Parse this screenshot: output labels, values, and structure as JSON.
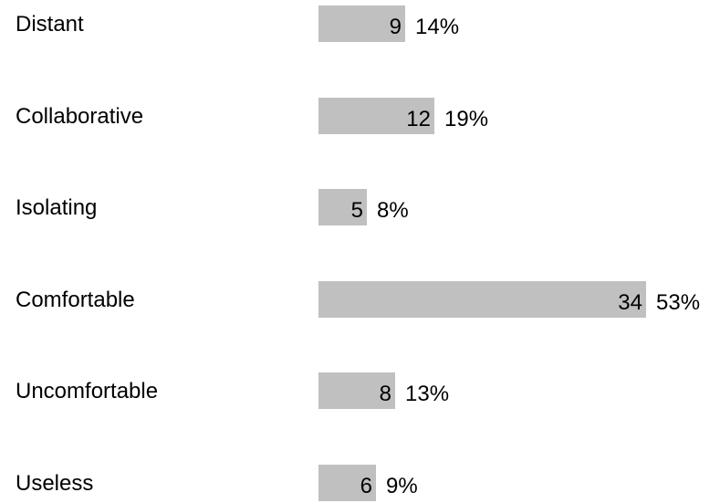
{
  "chart_data": {
    "type": "bar",
    "orientation": "horizontal",
    "title": "",
    "xlabel": "",
    "ylabel": "",
    "grid": false,
    "bar_color": "#c0c0c0",
    "categories": [
      "Distant",
      "Collaborative",
      "Isolating",
      "Comfortable",
      "Uncomfortable",
      "Useless"
    ],
    "values": [
      9,
      12,
      5,
      34,
      8,
      6
    ],
    "percent_labels": [
      "14%",
      "19%",
      "8%",
      "53%",
      "13%",
      "9%"
    ],
    "xlim": [
      0,
      34
    ]
  }
}
